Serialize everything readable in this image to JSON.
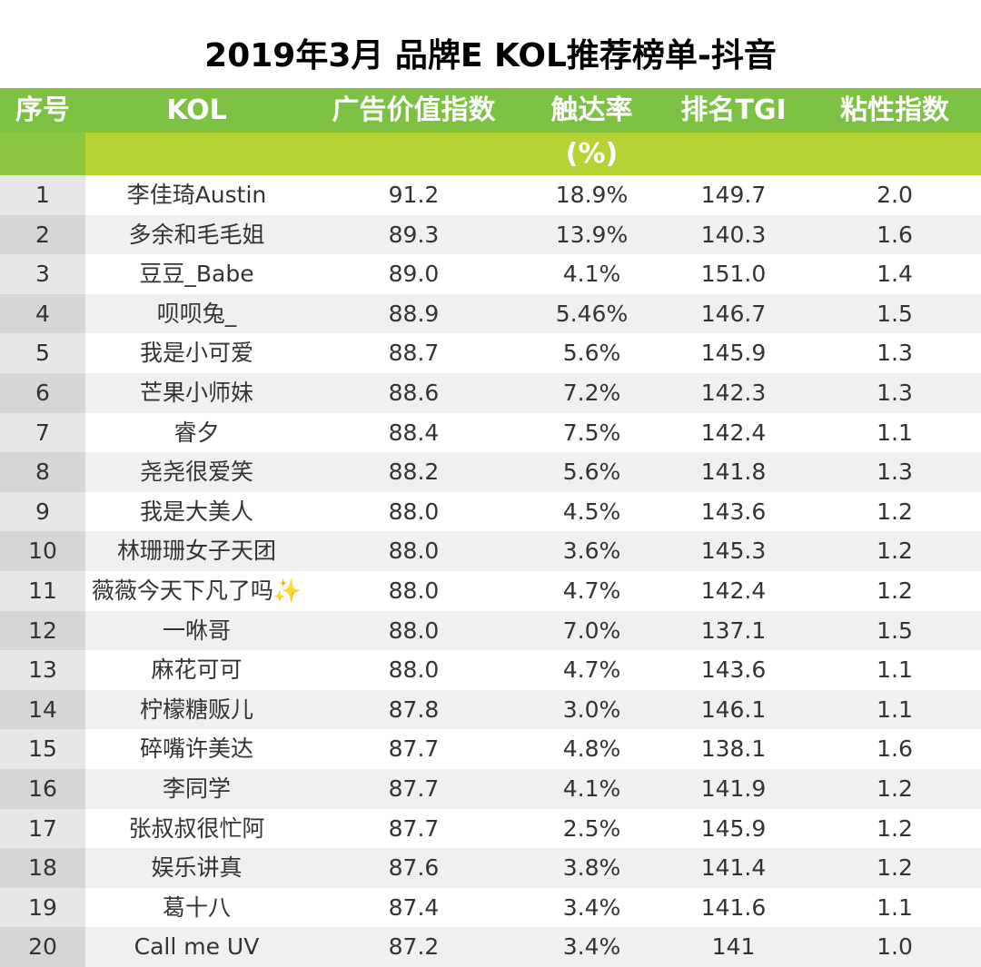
{
  "title": "2019年3月 品牌E KOL推荐榜单-抖音",
  "headers": {
    "seq": "序号",
    "kol": "KOL",
    "ad_index": "广告价值指数",
    "reach": "触达率",
    "reach_unit": "(%)",
    "tgi": "排名TGI",
    "stickiness": "粘性指数"
  },
  "colors": {
    "header_green": "#7cc142",
    "subheader_lime": "#b5d335",
    "seq_column_gray": "#e7e7e7",
    "stripe_gray": "#f0f0f0"
  },
  "rows": [
    {
      "seq": "1",
      "kol": "李佳琦Austin",
      "ad_index": "91.2",
      "reach": "18.9%",
      "tgi": "149.7",
      "stickiness": "2.0"
    },
    {
      "seq": "2",
      "kol": "多余和毛毛姐",
      "ad_index": "89.3",
      "reach": "13.9%",
      "tgi": "140.3",
      "stickiness": "1.6"
    },
    {
      "seq": "3",
      "kol": "豆豆_Babe",
      "ad_index": "89.0",
      "reach": "4.1%",
      "tgi": "151.0",
      "stickiness": "1.4"
    },
    {
      "seq": "4",
      "kol": "呗呗兔_",
      "ad_index": "88.9",
      "reach": "5.46%",
      "tgi": "146.7",
      "stickiness": "1.5"
    },
    {
      "seq": "5",
      "kol": "我是小可爱",
      "ad_index": "88.7",
      "reach": "5.6%",
      "tgi": "145.9",
      "stickiness": "1.3"
    },
    {
      "seq": "6",
      "kol": "芒果小师妹",
      "ad_index": "88.6",
      "reach": "7.2%",
      "tgi": "142.3",
      "stickiness": "1.3"
    },
    {
      "seq": "7",
      "kol": "睿夕",
      "ad_index": "88.4",
      "reach": "7.5%",
      "tgi": "142.4",
      "stickiness": "1.1"
    },
    {
      "seq": "8",
      "kol": "尧尧很爱笑",
      "ad_index": "88.2",
      "reach": "5.6%",
      "tgi": "141.8",
      "stickiness": "1.3"
    },
    {
      "seq": "9",
      "kol": "我是大美人",
      "ad_index": "88.0",
      "reach": "4.5%",
      "tgi": "143.6",
      "stickiness": "1.2"
    },
    {
      "seq": "10",
      "kol": "林珊珊女子天团",
      "ad_index": "88.0",
      "reach": "3.6%",
      "tgi": "145.3",
      "stickiness": "1.2"
    },
    {
      "seq": "11",
      "kol": "薇薇今天下凡了吗✨",
      "ad_index": "88.0",
      "reach": "4.7%",
      "tgi": "142.4",
      "stickiness": "1.2"
    },
    {
      "seq": "12",
      "kol": "一咻哥",
      "ad_index": "88.0",
      "reach": "7.0%",
      "tgi": "137.1",
      "stickiness": "1.5"
    },
    {
      "seq": "13",
      "kol": "麻花可可",
      "ad_index": "88.0",
      "reach": "4.7%",
      "tgi": "143.6",
      "stickiness": "1.1"
    },
    {
      "seq": "14",
      "kol": "柠檬糖贩儿",
      "ad_index": "87.8",
      "reach": "3.0%",
      "tgi": "146.1",
      "stickiness": "1.1"
    },
    {
      "seq": "15",
      "kol": "碎嘴许美达",
      "ad_index": "87.7",
      "reach": "4.8%",
      "tgi": "138.1",
      "stickiness": "1.6"
    },
    {
      "seq": "16",
      "kol": "李同学",
      "ad_index": "87.7",
      "reach": "4.1%",
      "tgi": "141.9",
      "stickiness": "1.2"
    },
    {
      "seq": "17",
      "kol": "张叔叔很忙阿",
      "ad_index": "87.7",
      "reach": "2.5%",
      "tgi": "145.9",
      "stickiness": "1.2"
    },
    {
      "seq": "18",
      "kol": "娱乐讲真",
      "ad_index": "87.6",
      "reach": "3.8%",
      "tgi": "141.4",
      "stickiness": "1.2"
    },
    {
      "seq": "19",
      "kol": "葛十八",
      "ad_index": "87.4",
      "reach": "3.4%",
      "tgi": "141.6",
      "stickiness": "1.1"
    },
    {
      "seq": "20",
      "kol": "Call me UV",
      "ad_index": "87.2",
      "reach": "3.4%",
      "tgi": "141",
      "stickiness": "1.0"
    }
  ]
}
